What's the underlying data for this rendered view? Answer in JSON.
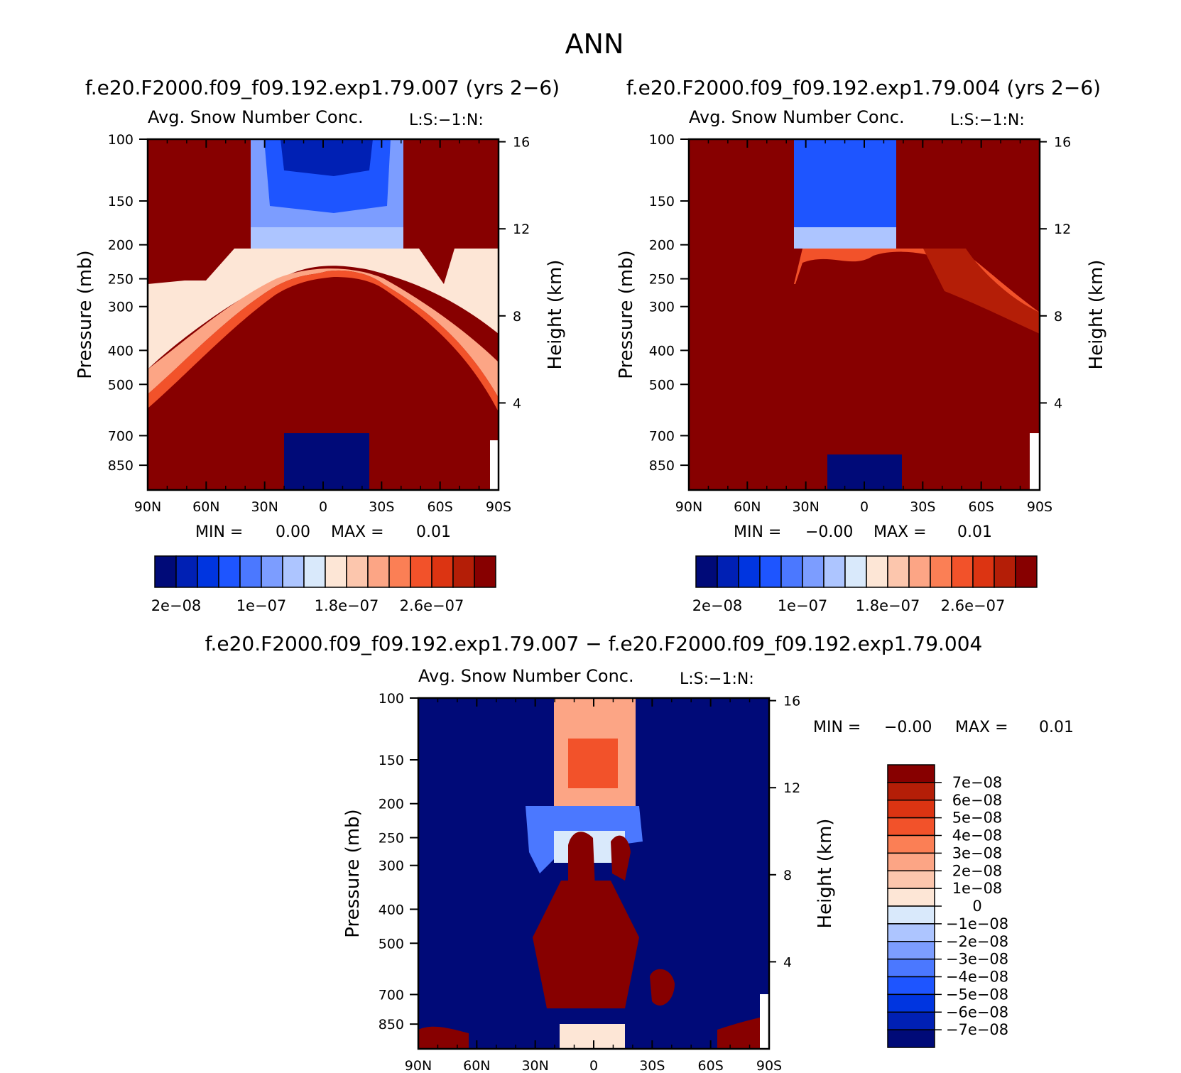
{
  "figure": {
    "title": "ANN",
    "case1": "f.e20.F2000.f09_f09.192.exp1.79.007 (yrs 2−6)",
    "case2": "f.e20.F2000.f09_f09.192.exp1.79.004 (yrs 2−6)",
    "diff_title": "f.e20.F2000.f09_f09.192.exp1.79.007 − f.e20.F2000.f09_f09.192.exp1.79.004"
  },
  "colors": {
    "abs_scale": [
      "#000a78",
      "#0020b4",
      "#0035e0",
      "#1e55ff",
      "#4b78ff",
      "#7c9dff",
      "#adc5ff",
      "#d9e9fb",
      "#fde6d6",
      "#fcc6ad",
      "#fca585",
      "#fb7f55",
      "#f2522a",
      "#dc3412",
      "#b41e07",
      "#870000"
    ],
    "diff_scale": [
      "#870000",
      "#b41e07",
      "#dc3412",
      "#f2522a",
      "#fb7f55",
      "#fca585",
      "#fcc6ad",
      "#fde6d6",
      "#d9e9fb",
      "#adc5ff",
      "#7c9dff",
      "#4b78ff",
      "#1e55ff",
      "#0035e0",
      "#0020b4",
      "#000a78"
    ]
  },
  "chart_data": [
    {
      "type": "contour",
      "id": "panel1",
      "case_title": "f.e20.F2000.f09_f09.192.exp1.79.007 (yrs 2−6)",
      "title": "Avg. Snow Number Conc.",
      "subtitle": "L:S:−1:N:",
      "xlabel": "",
      "ylabel": "Pressure (mb)",
      "y2label": "Height (km)",
      "x_ticks": [
        "90N",
        "60N",
        "30N",
        "0",
        "30S",
        "60S",
        "90S"
      ],
      "y_ticks": [
        "100",
        "150",
        "200",
        "250",
        "300",
        "400",
        "500",
        "700",
        "850"
      ],
      "y2_ticks": [
        "16",
        "12",
        "8",
        "4"
      ],
      "ylim": [
        100,
        1000
      ],
      "min_label": "MIN =",
      "min_value": "0.00",
      "max_label": "MAX =",
      "max_value": "0.01",
      "colorbar_labels": [
        "2e−08",
        "1e−07",
        "1.8e−07",
        "2.6e−07"
      ]
    },
    {
      "type": "contour",
      "id": "panel2",
      "case_title": "f.e20.F2000.f09_f09.192.exp1.79.004 (yrs 2−6)",
      "title": "Avg. Snow Number Conc.",
      "subtitle": "L:S:−1:N:",
      "xlabel": "",
      "ylabel": "Pressure (mb)",
      "y2label": "Height (km)",
      "x_ticks": [
        "90N",
        "60N",
        "30N",
        "0",
        "30S",
        "60S",
        "90S"
      ],
      "y_ticks": [
        "100",
        "150",
        "200",
        "250",
        "300",
        "400",
        "500",
        "700",
        "850"
      ],
      "y2_ticks": [
        "16",
        "12",
        "8",
        "4"
      ],
      "ylim": [
        100,
        1000
      ],
      "min_label": "MIN =",
      "min_value": "−0.00",
      "max_label": "MAX =",
      "max_value": "0.01",
      "colorbar_labels": [
        "2e−08",
        "1e−07",
        "1.8e−07",
        "2.6e−07"
      ]
    },
    {
      "type": "contour",
      "id": "panel3",
      "case_title": "f.e20.F2000.f09_f09.192.exp1.79.007 − f.e20.F2000.f09_f09.192.exp1.79.004",
      "title": "Avg. Snow Number Conc.",
      "subtitle": "L:S:−1:N:",
      "xlabel": "",
      "ylabel": "Pressure (mb)",
      "y2label": "Height (km)",
      "x_ticks": [
        "90N",
        "60N",
        "30N",
        "0",
        "30S",
        "60S",
        "90S"
      ],
      "y_ticks": [
        "100",
        "150",
        "200",
        "250",
        "300",
        "400",
        "500",
        "700",
        "850"
      ],
      "y2_ticks": [
        "16",
        "12",
        "8",
        "4"
      ],
      "ylim": [
        100,
        1000
      ],
      "min_label": "MIN =",
      "min_value": "−0.00",
      "max_label": "MAX =",
      "max_value": "0.01",
      "colorbar_labels": [
        "7e−08",
        "6e−08",
        "5e−08",
        "4e−08",
        "3e−08",
        "2e−08",
        "1e−08",
        "0",
        "−1e−08",
        "−2e−08",
        "−3e−08",
        "−4e−08",
        "−5e−08",
        "−6e−08",
        "−7e−08"
      ]
    }
  ]
}
